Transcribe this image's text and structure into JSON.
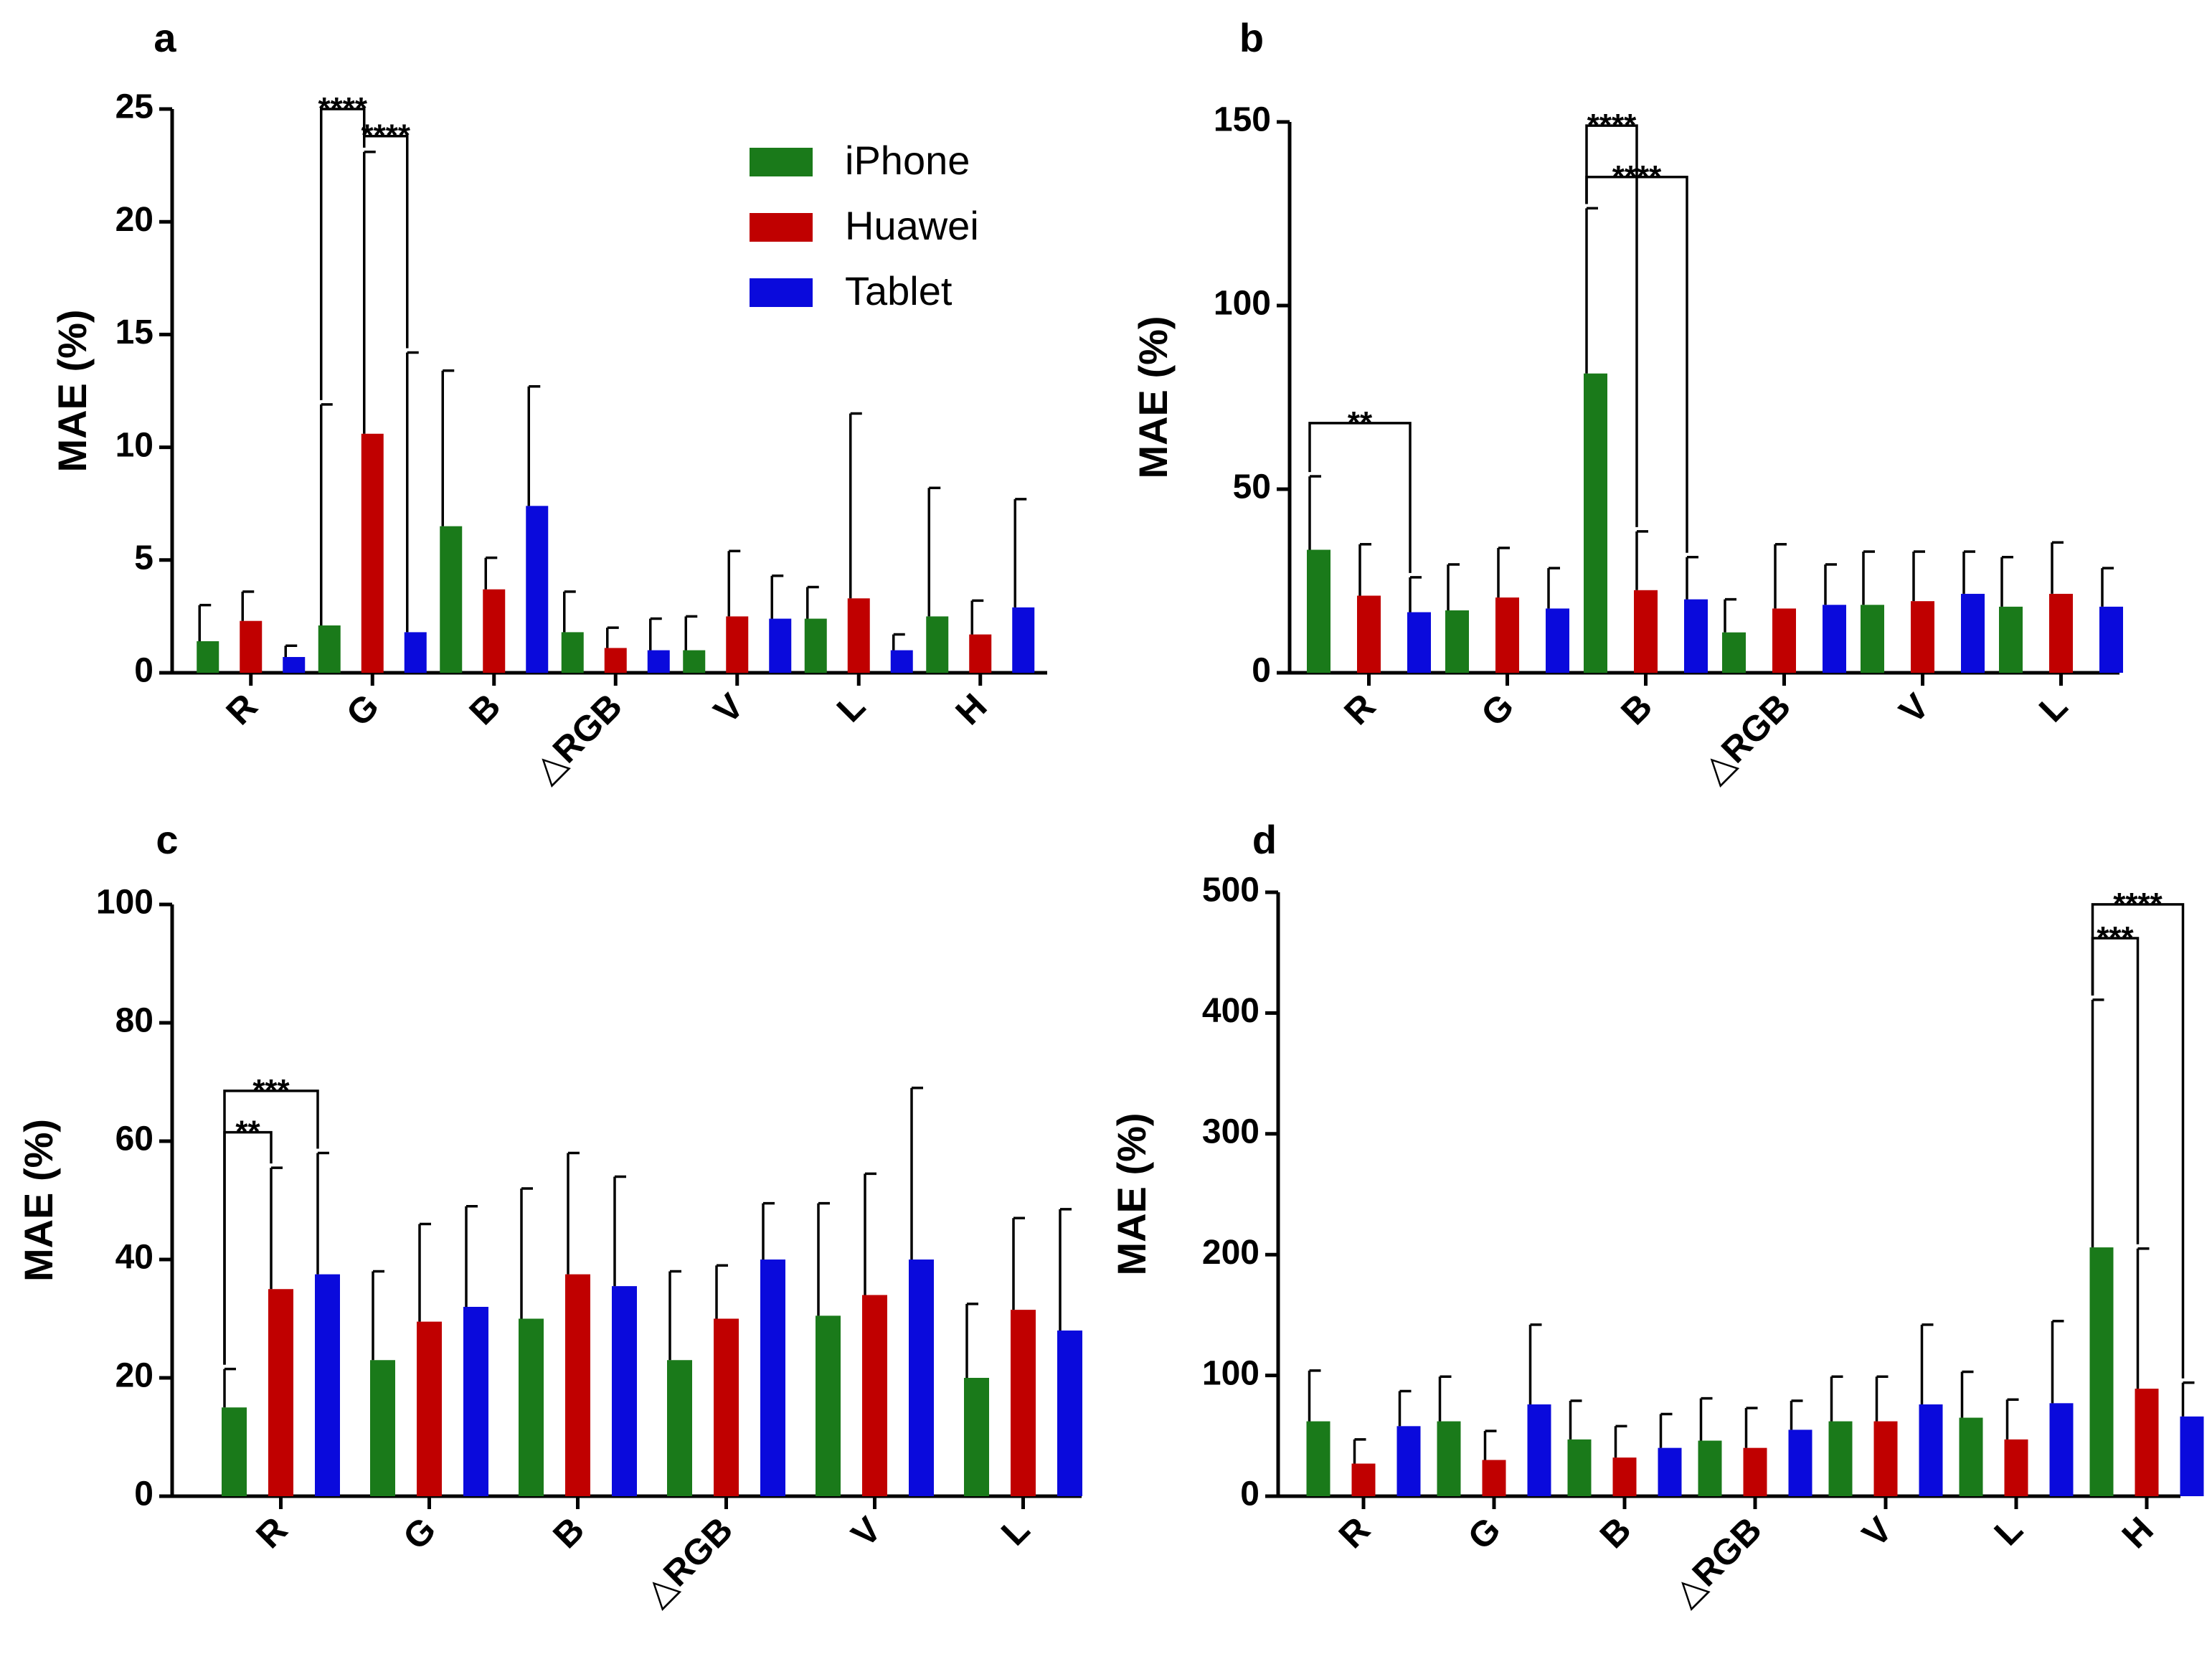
{
  "legend": {
    "entries": [
      {
        "name": "iPhone",
        "color": "#1a7a1a"
      },
      {
        "name": "Huawei",
        "color": "#c00000"
      },
      {
        "name": "Tablet",
        "color": "#0a0adc"
      }
    ]
  },
  "chart_data": [
    {
      "panel": "a",
      "type": "bar",
      "ylabel": "MAE (%)",
      "ylim": [
        0,
        25
      ],
      "yticks": [
        0,
        5,
        10,
        15,
        20,
        25
      ],
      "categories": [
        "R",
        "G",
        "B",
        "△RGB",
        "V",
        "L",
        "H"
      ],
      "series": [
        {
          "name": "iPhone",
          "values": [
            1.4,
            2.1,
            6.5,
            1.8,
            1.0,
            2.4,
            2.5
          ],
          "errors": [
            1.6,
            9.8,
            6.9,
            1.8,
            1.5,
            1.4,
            5.7
          ]
        },
        {
          "name": "Huawei",
          "values": [
            2.3,
            10.6,
            3.7,
            1.1,
            2.5,
            3.3,
            1.7
          ],
          "errors": [
            1.3,
            12.5,
            1.4,
            0.9,
            2.9,
            8.2,
            1.5
          ]
        },
        {
          "name": "Tablet",
          "values": [
            0.7,
            1.8,
            7.4,
            1.0,
            2.4,
            1.0,
            2.9
          ],
          "errors": [
            0.5,
            12.4,
            5.3,
            1.4,
            1.9,
            0.7,
            4.8
          ]
        }
      ],
      "significance": [
        {
          "label": "****",
          "category": "G",
          "from": "iPhone",
          "to": "Huawei",
          "level": 25
        },
        {
          "label": "****",
          "category": "G",
          "from": "Huawei",
          "to": "Tablet",
          "level": 23.8
        }
      ]
    },
    {
      "panel": "b",
      "type": "bar",
      "ylabel": "MAE (%)",
      "ylim": [
        0,
        150
      ],
      "yticks": [
        0,
        50,
        100,
        150
      ],
      "categories": [
        "R",
        "G",
        "B",
        "△RGB",
        "V",
        "L"
      ],
      "series": [
        {
          "name": "iPhone",
          "values": [
            33.5,
            17,
            81.5,
            11,
            18.5,
            18
          ],
          "errors": [
            20,
            12.5,
            45,
            9,
            14.5,
            13.5
          ]
        },
        {
          "name": "Huawei",
          "values": [
            21,
            20.5,
            22.5,
            17.5,
            19.5,
            21.5
          ],
          "errors": [
            14,
            13.5,
            16,
            17.5,
            13.5,
            14
          ]
        },
        {
          "name": "Tablet",
          "values": [
            16.5,
            17.5,
            20,
            18.5,
            21.5,
            18
          ],
          "errors": [
            9.5,
            11,
            11.5,
            11,
            11.5,
            10.5
          ]
        }
      ],
      "significance": [
        {
          "label": "**",
          "category": "R",
          "from": "iPhone",
          "to": "Tablet",
          "level": 68
        },
        {
          "label": "****",
          "category": "B",
          "from": "iPhone",
          "to": "Huawei",
          "level": 149
        },
        {
          "label": "****",
          "category": "B",
          "from": "iPhone",
          "to": "Tablet",
          "level": 135
        }
      ]
    },
    {
      "panel": "c",
      "type": "bar",
      "ylabel": "MAE (%)",
      "ylim": [
        0,
        100
      ],
      "yticks": [
        0,
        20,
        40,
        60,
        80,
        100
      ],
      "categories": [
        "R",
        "G",
        "B",
        "△RGB",
        "V",
        "L"
      ],
      "series": [
        {
          "name": "iPhone",
          "values": [
            15,
            23,
            30,
            23,
            30.5,
            20
          ],
          "errors": [
            6.5,
            15,
            22,
            15,
            19,
            12.5
          ]
        },
        {
          "name": "Huawei",
          "values": [
            35,
            29.5,
            37.5,
            30,
            34,
            31.5
          ],
          "errors": [
            20.5,
            16.5,
            20.5,
            9,
            20.5,
            15.5
          ]
        },
        {
          "name": "Tablet",
          "values": [
            37.5,
            32,
            35.5,
            40,
            40,
            28
          ],
          "errors": [
            20.5,
            17,
            18.5,
            9.5,
            29,
            20.5
          ]
        }
      ],
      "significance": [
        {
          "label": "***",
          "category": "R",
          "from": "iPhone",
          "to": "Tablet",
          "level": 68.5
        },
        {
          "label": "**",
          "category": "R",
          "from": "iPhone",
          "to": "Huawei",
          "level": 61.5
        }
      ]
    },
    {
      "panel": "d",
      "type": "bar",
      "ylabel": "MAE (%)",
      "ylim": [
        0,
        500
      ],
      "yticks": [
        0,
        100,
        200,
        300,
        400,
        500
      ],
      "categories": [
        "R",
        "G",
        "B",
        "△RGB",
        "V",
        "L",
        "H"
      ],
      "series": [
        {
          "name": "iPhone",
          "values": [
            62,
            62,
            47,
            46,
            62,
            65,
            206
          ],
          "errors": [
            42,
            37,
            32,
            35,
            37,
            38,
            205
          ]
        },
        {
          "name": "Huawei",
          "values": [
            27,
            30,
            32,
            40,
            62,
            47,
            89
          ],
          "errors": [
            20,
            24,
            26,
            33,
            37,
            33,
            116
          ]
        },
        {
          "name": "Tablet",
          "values": [
            58,
            76,
            40,
            55,
            76,
            77,
            66
          ],
          "errors": [
            29,
            66,
            28,
            24,
            66,
            68,
            28
          ]
        }
      ],
      "significance": [
        {
          "label": "****",
          "category": "H",
          "from": "iPhone",
          "to": "Tablet",
          "level": 490
        },
        {
          "label": "***",
          "category": "H",
          "from": "iPhone",
          "to": "Huawei",
          "level": 462
        }
      ]
    }
  ]
}
